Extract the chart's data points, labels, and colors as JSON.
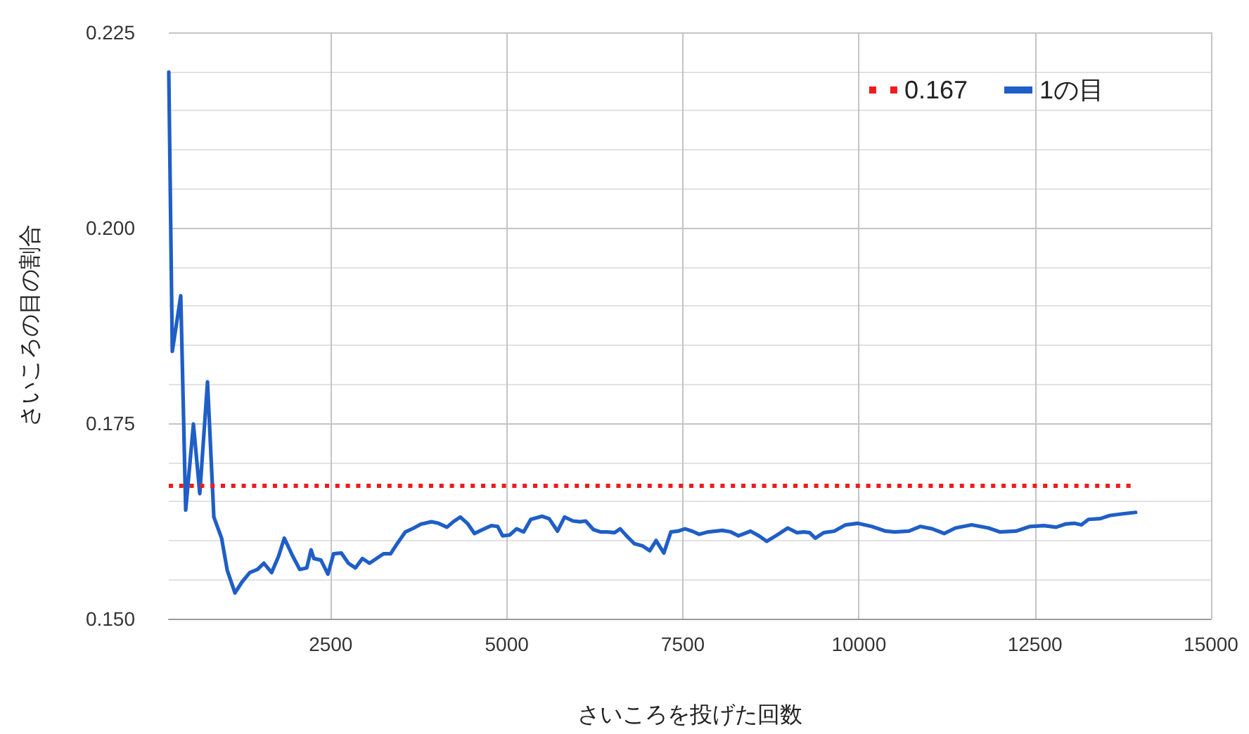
{
  "chart_data": {
    "type": "line",
    "xlabel": "さいころを投げた回数",
    "ylabel": "さいころの目の割合",
    "xlim": [
      200,
      15000
    ],
    "xticks": [
      2500,
      5000,
      7500,
      10000,
      12500,
      15000
    ],
    "ylim": [
      0.15,
      0.225
    ],
    "yticks": [
      {
        "value": 0.15,
        "label": "0.150"
      },
      {
        "value": 0.175,
        "label": "0.175"
      },
      {
        "value": 0.2,
        "label": "0.200"
      },
      {
        "value": 0.225,
        "label": "0.225"
      }
    ],
    "grid": true,
    "legend": "top right",
    "marker": "none",
    "series": [
      {
        "name": "0.167",
        "color": "#ee1c1c",
        "line_style": "dotted",
        "x": [
          200,
          13930
        ],
        "values": [
          0.167,
          0.167
        ]
      },
      {
        "name": "1の目",
        "color": "#1f5ec6",
        "line_style": "solid",
        "x": [
          200,
          250,
          370,
          440,
          550,
          640,
          750,
          840,
          950,
          1030,
          1140,
          1240,
          1350,
          1460,
          1550,
          1660,
          1760,
          1840,
          1960,
          2060,
          2160,
          2220,
          2260,
          2360,
          2460,
          2540,
          2650,
          2750,
          2850,
          2950,
          3050,
          3150,
          3250,
          3350,
          3450,
          3560,
          3680,
          3780,
          3930,
          4030,
          4150,
          4240,
          4340,
          4440,
          4540,
          4680,
          4780,
          4870,
          4940,
          5040,
          5140,
          5240,
          5340,
          5500,
          5600,
          5720,
          5820,
          5940,
          6040,
          6120,
          6230,
          6330,
          6430,
          6530,
          6610,
          6700,
          6810,
          6930,
          7030,
          7120,
          7230,
          7330,
          7430,
          7530,
          7630,
          7730,
          7860,
          8060,
          8180,
          8290,
          8460,
          8580,
          8690,
          8820,
          8990,
          9120,
          9220,
          9300,
          9380,
          9500,
          9650,
          9810,
          9980,
          10180,
          10380,
          10510,
          10710,
          10870,
          11040,
          11210,
          11370,
          11600,
          11840,
          12000,
          12230,
          12430,
          12630,
          12800,
          12930,
          13060,
          13160,
          13260,
          13430,
          13560,
          13730,
          13930
        ],
        "values": [
          0.2199,
          0.1842,
          0.1913,
          0.1639,
          0.1749,
          0.166,
          0.1803,
          0.163,
          0.1603,
          0.1562,
          0.1533,
          0.1547,
          0.1559,
          0.1563,
          0.1571,
          0.1559,
          0.158,
          0.1603,
          0.158,
          0.1563,
          0.1565,
          0.1588,
          0.1577,
          0.1575,
          0.1557,
          0.1583,
          0.1584,
          0.1571,
          0.1565,
          0.1577,
          0.1571,
          0.1577,
          0.1583,
          0.1583,
          0.1597,
          0.1611,
          0.1616,
          0.1621,
          0.1624,
          0.1622,
          0.1617,
          0.1624,
          0.163,
          0.1622,
          0.1609,
          0.1615,
          0.1619,
          0.1618,
          0.1606,
          0.1607,
          0.1615,
          0.1611,
          0.1627,
          0.1631,
          0.1628,
          0.1612,
          0.163,
          0.1625,
          0.1624,
          0.1625,
          0.1614,
          0.1611,
          0.1611,
          0.161,
          0.1615,
          0.1606,
          0.1596,
          0.1593,
          0.1587,
          0.16,
          0.1584,
          0.1611,
          0.1612,
          0.1615,
          0.1612,
          0.1608,
          0.1611,
          0.1613,
          0.1611,
          0.1606,
          0.1612,
          0.1606,
          0.1599,
          0.1606,
          0.1616,
          0.161,
          0.1611,
          0.161,
          0.1603,
          0.161,
          0.1612,
          0.162,
          0.1622,
          0.1618,
          0.1612,
          0.1611,
          0.1612,
          0.1618,
          0.1615,
          0.1609,
          0.1616,
          0.162,
          0.1616,
          0.1611,
          0.1612,
          0.1618,
          0.1619,
          0.1617,
          0.1621,
          0.1622,
          0.162,
          0.1627,
          0.1628,
          0.1632,
          0.1634,
          0.1636
        ]
      }
    ]
  }
}
